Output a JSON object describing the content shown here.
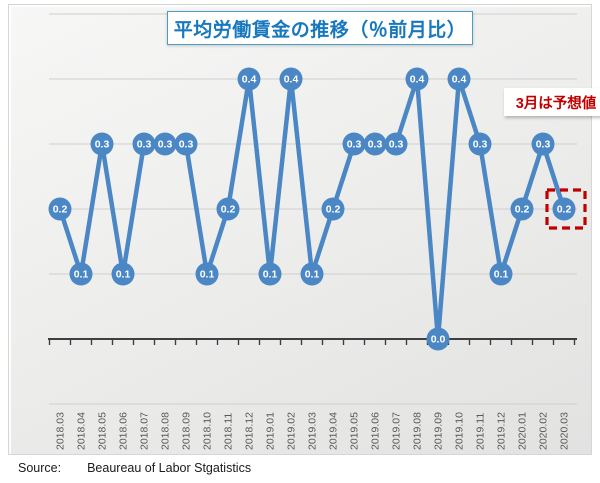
{
  "source": {
    "prefix": "Source:",
    "text": "Beaureau of Labor Stgatistics"
  },
  "colors": {
    "line": "#4a87c4",
    "marker": "#4a87c4",
    "marker_label": "#ffffff",
    "highlight_red": "#c00000",
    "annotation_red": "#c00000",
    "title_blue": "#1878be",
    "axis_label_gray": "#595959",
    "gridline_gray": "#cfcfce",
    "axis_dark": "#3f3f3f"
  },
  "chart_data": {
    "type": "line",
    "title": "平均労働賃金の推移（％前月比）",
    "annotation": "3月は予想値",
    "annotation_meaning": "March is a forecast value",
    "categories": [
      "2018.03",
      "2018.04",
      "2018.05",
      "2018.06",
      "2018.07",
      "2018.08",
      "2018.09",
      "2018.10",
      "2018.11",
      "2018.12",
      "2019.01",
      "2019.02",
      "2019.03",
      "2019.04",
      "2019.05",
      "2019.06",
      "2019.07",
      "2019.08",
      "2019.09",
      "2019.10",
      "2019.11",
      "2019.12",
      "2020.01",
      "2020.02",
      "2020.03"
    ],
    "values": [
      0.2,
      0.1,
      0.3,
      0.1,
      0.3,
      0.3,
      0.3,
      0.1,
      0.2,
      0.4,
      0.1,
      0.4,
      0.1,
      0.2,
      0.3,
      0.3,
      0.3,
      0.4,
      0.0,
      0.4,
      0.3,
      0.1,
      0.2,
      0.3,
      0.2
    ],
    "xlabel": "",
    "ylabel": "",
    "ylim": [
      -0.1,
      0.5
    ],
    "gridlines": [
      0.5,
      0.4,
      0.3,
      0.2,
      0.1,
      -0.1
    ],
    "axis_crosses_at": 0.0,
    "grid": "horizontal-only",
    "legend_position": "none",
    "data_labels": true,
    "highlighted_point": "2020.03",
    "x_tick_label_rotation_deg": -90
  }
}
